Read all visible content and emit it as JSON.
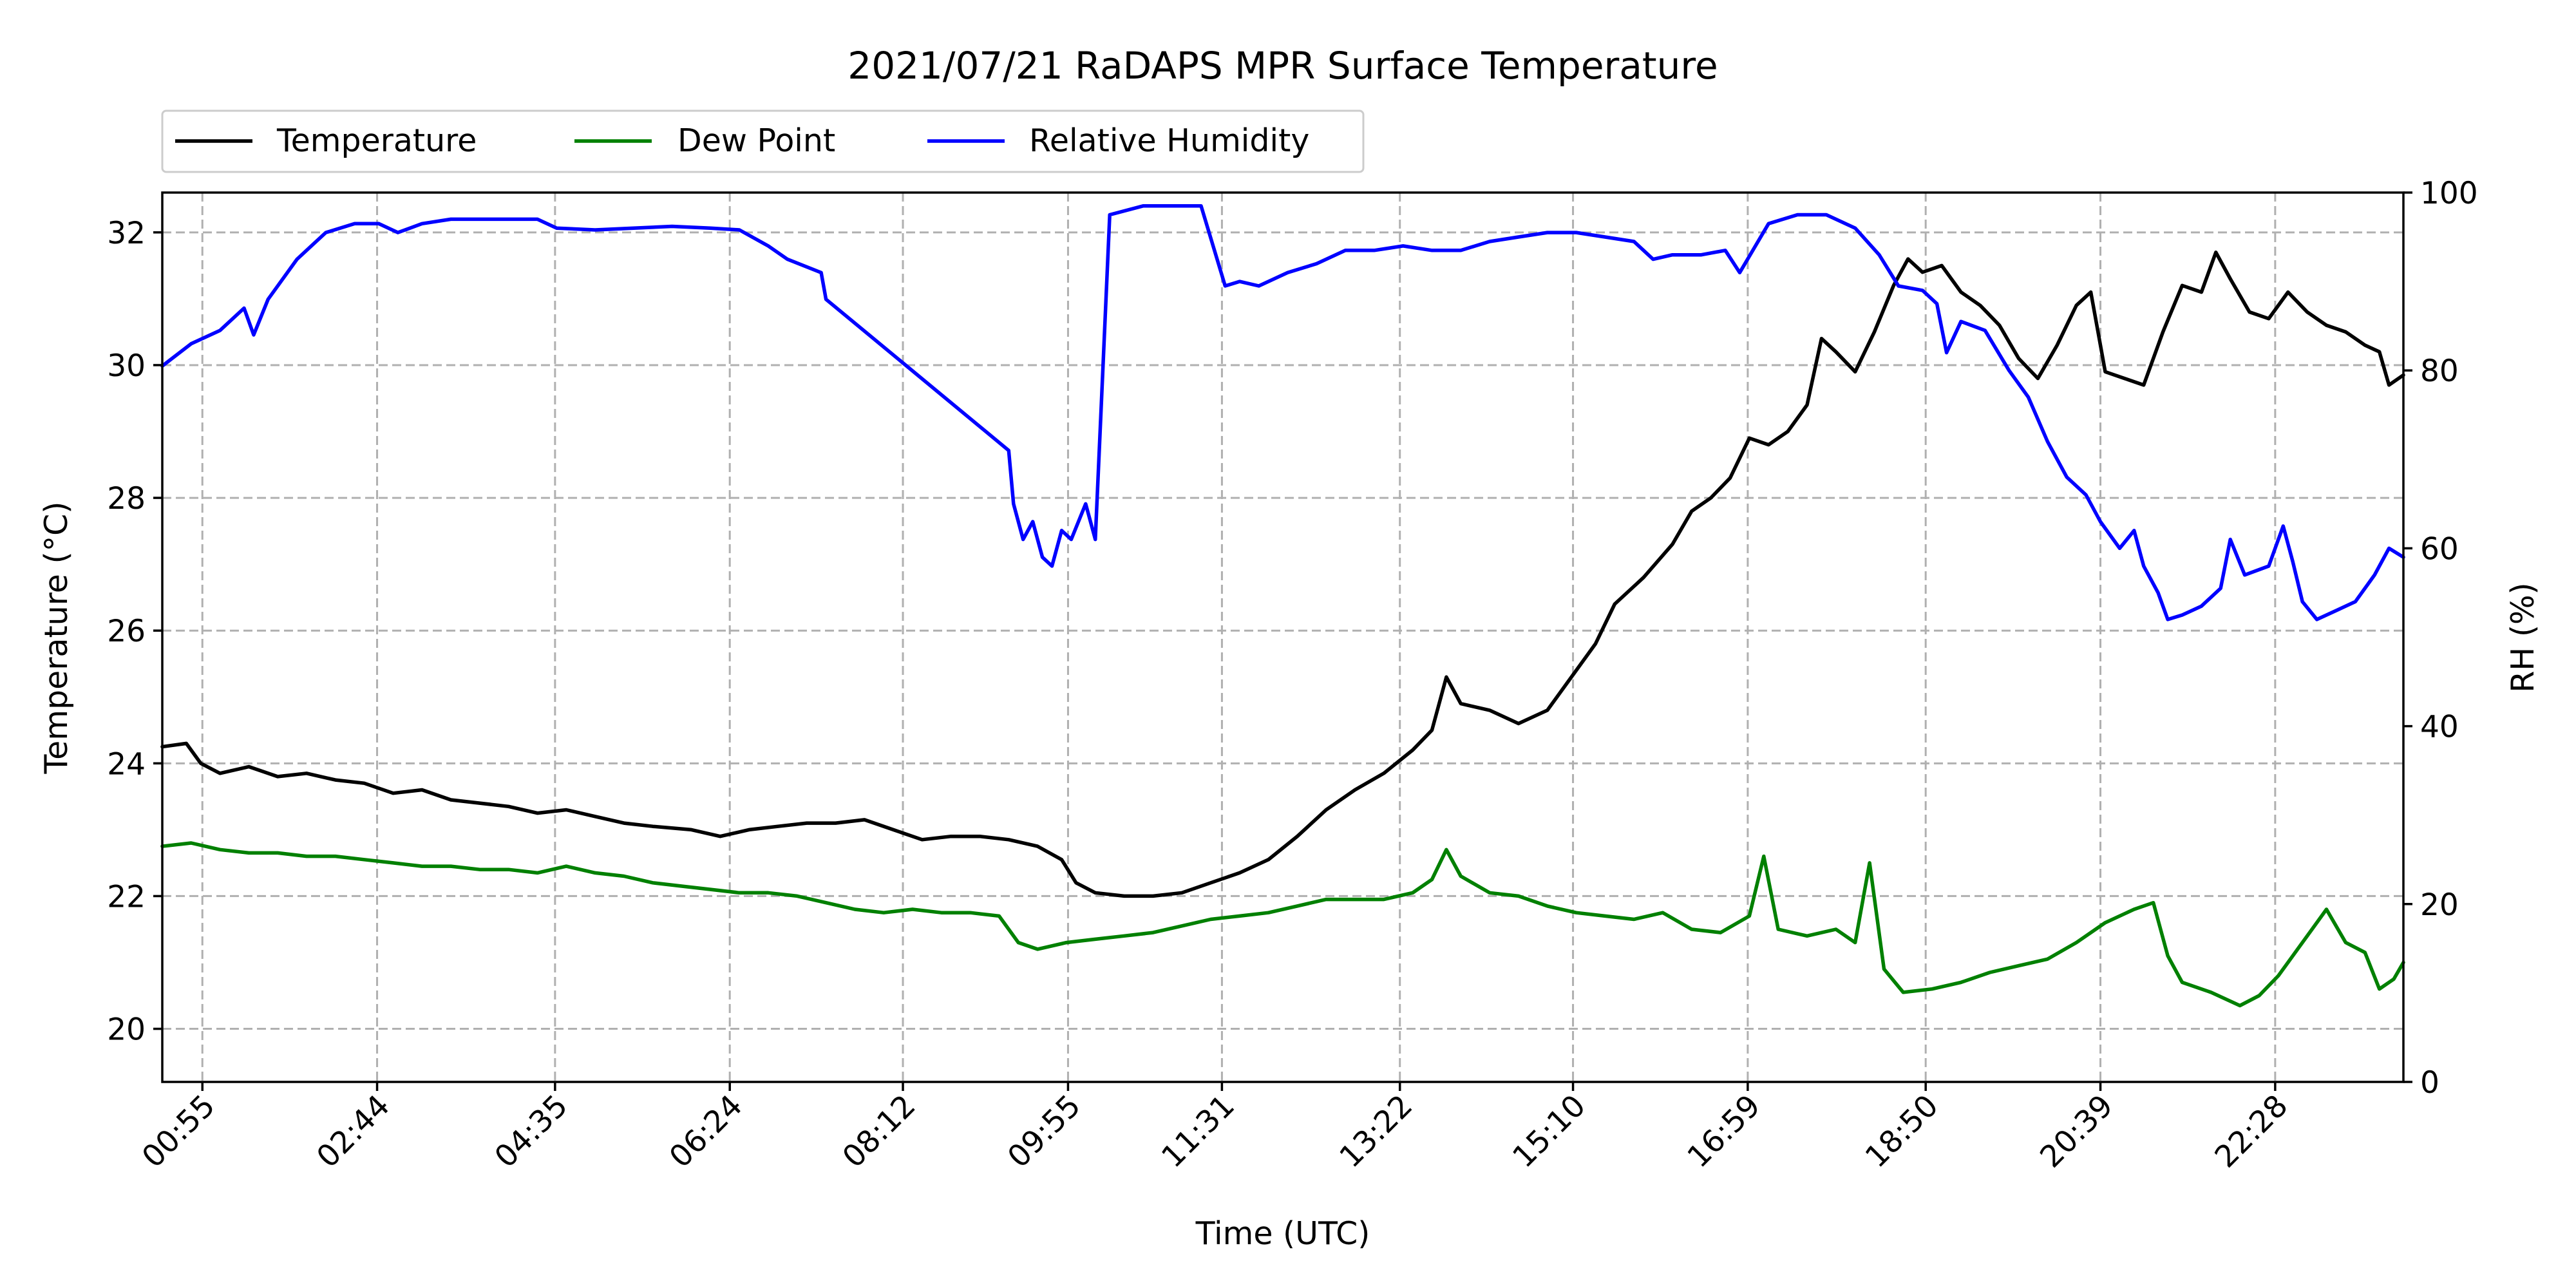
{
  "chart_data": {
    "type": "line",
    "title": "2021/07/21 RaDAPS MPR Surface Temperature",
    "xlabel": "Time (UTC)",
    "ylabel": "Temperature ($^\\circ$C)",
    "ylabel_display": "Temperature (°C)",
    "y2label": "RH (%)",
    "x_unit": "hours UTC",
    "xlim": [
      0.5,
      23.8
    ],
    "ylim": [
      19.2,
      32.6
    ],
    "y2lim": [
      0,
      100
    ],
    "x_ticks": [
      0.9167,
      2.7333,
      4.5833,
      6.4,
      8.2,
      9.9167,
      11.5167,
      13.3667,
      15.1667,
      16.9833,
      18.8333,
      20.65,
      22.4667
    ],
    "x_tick_labels": [
      "00:55",
      "02:44",
      "04:35",
      "06:24",
      "08:12",
      "09:55",
      "11:31",
      "13:22",
      "15:10",
      "16:59",
      "18:50",
      "20:39",
      "22:28"
    ],
    "y_ticks": [
      20,
      22,
      24,
      26,
      28,
      30,
      32
    ],
    "y_tick_labels": [
      "20",
      "22",
      "24",
      "26",
      "28",
      "30",
      "32"
    ],
    "y2_ticks": [
      0,
      20,
      40,
      60,
      80,
      100
    ],
    "y2_tick_labels": [
      "0",
      "20",
      "40",
      "60",
      "80",
      "100"
    ],
    "grid": true,
    "legend": {
      "placement": "above-left",
      "ncol": 3
    },
    "series": [
      {
        "name": "Temperature",
        "axis": "left",
        "color": "#000000",
        "points": [
          [
            0.5,
            24.25
          ],
          [
            0.75,
            24.3
          ],
          [
            0.9,
            24.0
          ],
          [
            1.1,
            23.85
          ],
          [
            1.4,
            23.95
          ],
          [
            1.7,
            23.8
          ],
          [
            2.0,
            23.85
          ],
          [
            2.3,
            23.75
          ],
          [
            2.6,
            23.7
          ],
          [
            2.9,
            23.55
          ],
          [
            3.2,
            23.6
          ],
          [
            3.5,
            23.45
          ],
          [
            3.8,
            23.4
          ],
          [
            4.1,
            23.35
          ],
          [
            4.4,
            23.25
          ],
          [
            4.7,
            23.3
          ],
          [
            5.0,
            23.2
          ],
          [
            5.3,
            23.1
          ],
          [
            5.6,
            23.05
          ],
          [
            6.0,
            23.0
          ],
          [
            6.3,
            22.9
          ],
          [
            6.6,
            23.0
          ],
          [
            6.9,
            23.05
          ],
          [
            7.2,
            23.1
          ],
          [
            7.5,
            23.1
          ],
          [
            7.8,
            23.15
          ],
          [
            8.1,
            23.0
          ],
          [
            8.4,
            22.85
          ],
          [
            8.7,
            22.9
          ],
          [
            9.0,
            22.9
          ],
          [
            9.3,
            22.85
          ],
          [
            9.6,
            22.75
          ],
          [
            9.85,
            22.55
          ],
          [
            10.0,
            22.2
          ],
          [
            10.2,
            22.05
          ],
          [
            10.5,
            22.0
          ],
          [
            10.8,
            22.0
          ],
          [
            11.1,
            22.05
          ],
          [
            11.4,
            22.2
          ],
          [
            11.7,
            22.35
          ],
          [
            12.0,
            22.55
          ],
          [
            12.3,
            22.9
          ],
          [
            12.6,
            23.3
          ],
          [
            12.9,
            23.6
          ],
          [
            13.2,
            23.85
          ],
          [
            13.5,
            24.2
          ],
          [
            13.7,
            24.5
          ],
          [
            13.85,
            25.3
          ],
          [
            14.0,
            24.9
          ],
          [
            14.3,
            24.8
          ],
          [
            14.6,
            24.6
          ],
          [
            14.9,
            24.8
          ],
          [
            15.1,
            25.2
          ],
          [
            15.4,
            25.8
          ],
          [
            15.6,
            26.4
          ],
          [
            15.9,
            26.8
          ],
          [
            16.2,
            27.3
          ],
          [
            16.4,
            27.8
          ],
          [
            16.6,
            28.0
          ],
          [
            16.8,
            28.3
          ],
          [
            17.0,
            28.9
          ],
          [
            17.2,
            28.8
          ],
          [
            17.4,
            29.0
          ],
          [
            17.6,
            29.4
          ],
          [
            17.75,
            30.4
          ],
          [
            17.9,
            30.2
          ],
          [
            18.1,
            29.9
          ],
          [
            18.3,
            30.5
          ],
          [
            18.5,
            31.2
          ],
          [
            18.65,
            31.6
          ],
          [
            18.8,
            31.4
          ],
          [
            19.0,
            31.5
          ],
          [
            19.2,
            31.1
          ],
          [
            19.4,
            30.9
          ],
          [
            19.6,
            30.6
          ],
          [
            19.8,
            30.1
          ],
          [
            20.0,
            29.8
          ],
          [
            20.2,
            30.3
          ],
          [
            20.4,
            30.9
          ],
          [
            20.55,
            31.1
          ],
          [
            20.7,
            29.9
          ],
          [
            20.9,
            29.8
          ],
          [
            21.1,
            29.7
          ],
          [
            21.3,
            30.5
          ],
          [
            21.5,
            31.2
          ],
          [
            21.7,
            31.1
          ],
          [
            21.85,
            31.7
          ],
          [
            22.0,
            31.3
          ],
          [
            22.2,
            30.8
          ],
          [
            22.4,
            30.7
          ],
          [
            22.6,
            31.1
          ],
          [
            22.8,
            30.8
          ],
          [
            23.0,
            30.6
          ],
          [
            23.2,
            30.5
          ],
          [
            23.4,
            30.3
          ],
          [
            23.55,
            30.2
          ],
          [
            23.65,
            29.7
          ],
          [
            23.8,
            29.85
          ]
        ]
      },
      {
        "name": "Dew Point",
        "axis": "left",
        "color": "#008000",
        "points": [
          [
            0.5,
            22.75
          ],
          [
            0.8,
            22.8
          ],
          [
            1.1,
            22.7
          ],
          [
            1.4,
            22.65
          ],
          [
            1.7,
            22.65
          ],
          [
            2.0,
            22.6
          ],
          [
            2.3,
            22.6
          ],
          [
            2.6,
            22.55
          ],
          [
            2.9,
            22.5
          ],
          [
            3.2,
            22.45
          ],
          [
            3.5,
            22.45
          ],
          [
            3.8,
            22.4
          ],
          [
            4.1,
            22.4
          ],
          [
            4.4,
            22.35
          ],
          [
            4.7,
            22.45
          ],
          [
            5.0,
            22.35
          ],
          [
            5.3,
            22.3
          ],
          [
            5.6,
            22.2
          ],
          [
            5.9,
            22.15
          ],
          [
            6.2,
            22.1
          ],
          [
            6.5,
            22.05
          ],
          [
            6.8,
            22.05
          ],
          [
            7.1,
            22.0
          ],
          [
            7.4,
            21.9
          ],
          [
            7.7,
            21.8
          ],
          [
            8.0,
            21.75
          ],
          [
            8.3,
            21.8
          ],
          [
            8.6,
            21.75
          ],
          [
            8.9,
            21.75
          ],
          [
            9.2,
            21.7
          ],
          [
            9.4,
            21.3
          ],
          [
            9.6,
            21.2
          ],
          [
            9.9,
            21.3
          ],
          [
            10.2,
            21.35
          ],
          [
            10.5,
            21.4
          ],
          [
            10.8,
            21.45
          ],
          [
            11.1,
            21.55
          ],
          [
            11.4,
            21.65
          ],
          [
            11.7,
            21.7
          ],
          [
            12.0,
            21.75
          ],
          [
            12.3,
            21.85
          ],
          [
            12.6,
            21.95
          ],
          [
            12.9,
            21.95
          ],
          [
            13.2,
            21.95
          ],
          [
            13.5,
            22.05
          ],
          [
            13.7,
            22.25
          ],
          [
            13.85,
            22.7
          ],
          [
            14.0,
            22.3
          ],
          [
            14.3,
            22.05
          ],
          [
            14.6,
            22.0
          ],
          [
            14.9,
            21.85
          ],
          [
            15.2,
            21.75
          ],
          [
            15.5,
            21.7
          ],
          [
            15.8,
            21.65
          ],
          [
            16.1,
            21.75
          ],
          [
            16.4,
            21.5
          ],
          [
            16.7,
            21.45
          ],
          [
            17.0,
            21.7
          ],
          [
            17.15,
            22.6
          ],
          [
            17.3,
            21.5
          ],
          [
            17.6,
            21.4
          ],
          [
            17.9,
            21.5
          ],
          [
            18.1,
            21.3
          ],
          [
            18.25,
            22.5
          ],
          [
            18.4,
            20.9
          ],
          [
            18.6,
            20.55
          ],
          [
            18.9,
            20.6
          ],
          [
            19.2,
            20.7
          ],
          [
            19.5,
            20.85
          ],
          [
            19.8,
            20.95
          ],
          [
            20.1,
            21.05
          ],
          [
            20.4,
            21.3
          ],
          [
            20.7,
            21.6
          ],
          [
            21.0,
            21.8
          ],
          [
            21.2,
            21.9
          ],
          [
            21.35,
            21.1
          ],
          [
            21.5,
            20.7
          ],
          [
            21.8,
            20.55
          ],
          [
            22.1,
            20.35
          ],
          [
            22.3,
            20.5
          ],
          [
            22.5,
            20.8
          ],
          [
            22.7,
            21.2
          ],
          [
            22.85,
            21.5
          ],
          [
            23.0,
            21.8
          ],
          [
            23.2,
            21.3
          ],
          [
            23.4,
            21.15
          ],
          [
            23.55,
            20.6
          ],
          [
            23.7,
            20.75
          ],
          [
            23.8,
            21.0
          ]
        ]
      },
      {
        "name": "Relative Humidity",
        "axis": "right",
        "color": "#0000ff",
        "points": [
          [
            0.5,
            80.5
          ],
          [
            0.8,
            83.0
          ],
          [
            1.1,
            84.5
          ],
          [
            1.35,
            87.0
          ],
          [
            1.45,
            84.0
          ],
          [
            1.6,
            88.0
          ],
          [
            1.9,
            92.5
          ],
          [
            2.2,
            95.5
          ],
          [
            2.5,
            96.5
          ],
          [
            2.75,
            96.5
          ],
          [
            2.95,
            95.5
          ],
          [
            3.2,
            96.5
          ],
          [
            3.5,
            97.0
          ],
          [
            3.8,
            97.0
          ],
          [
            4.1,
            97.0
          ],
          [
            4.4,
            97.0
          ],
          [
            4.6,
            96.0
          ],
          [
            5.0,
            95.8
          ],
          [
            5.4,
            96.0
          ],
          [
            5.8,
            96.2
          ],
          [
            6.2,
            96.0
          ],
          [
            6.5,
            95.8
          ],
          [
            6.8,
            94.0
          ],
          [
            7.0,
            92.5
          ],
          [
            7.35,
            91.0
          ],
          [
            7.4,
            88.0
          ],
          [
            9.3,
            71.0
          ],
          [
            9.35,
            65.0
          ],
          [
            9.45,
            61.0
          ],
          [
            9.55,
            63.0
          ],
          [
            9.65,
            59.0
          ],
          [
            9.75,
            58.0
          ],
          [
            9.85,
            62.0
          ],
          [
            9.95,
            61.0
          ],
          [
            10.1,
            65.0
          ],
          [
            10.2,
            61.0
          ],
          [
            10.35,
            97.5
          ],
          [
            10.7,
            98.5
          ],
          [
            11.0,
            98.5
          ],
          [
            11.3,
            98.5
          ],
          [
            11.55,
            89.5
          ],
          [
            11.7,
            90.0
          ],
          [
            11.9,
            89.5
          ],
          [
            12.2,
            91.0
          ],
          [
            12.5,
            92.0
          ],
          [
            12.8,
            93.5
          ],
          [
            13.1,
            93.5
          ],
          [
            13.4,
            94.0
          ],
          [
            13.7,
            93.5
          ],
          [
            14.0,
            93.5
          ],
          [
            14.3,
            94.5
          ],
          [
            14.6,
            95.0
          ],
          [
            14.9,
            95.5
          ],
          [
            15.2,
            95.5
          ],
          [
            15.5,
            95.0
          ],
          [
            15.8,
            94.5
          ],
          [
            16.0,
            92.5
          ],
          [
            16.2,
            93.0
          ],
          [
            16.5,
            93.0
          ],
          [
            16.75,
            93.5
          ],
          [
            16.9,
            91.0
          ],
          [
            17.2,
            96.5
          ],
          [
            17.5,
            97.5
          ],
          [
            17.8,
            97.5
          ],
          [
            18.1,
            96.0
          ],
          [
            18.35,
            93.0
          ],
          [
            18.55,
            89.5
          ],
          [
            18.8,
            89.0
          ],
          [
            18.95,
            87.5
          ],
          [
            19.05,
            82.0
          ],
          [
            19.2,
            85.5
          ],
          [
            19.45,
            84.5
          ],
          [
            19.7,
            80.0
          ],
          [
            19.9,
            77.0
          ],
          [
            20.1,
            72.0
          ],
          [
            20.3,
            68.0
          ],
          [
            20.5,
            66.0
          ],
          [
            20.65,
            63.0
          ],
          [
            20.85,
            60.0
          ],
          [
            21.0,
            62.0
          ],
          [
            21.1,
            58.0
          ],
          [
            21.25,
            55.0
          ],
          [
            21.35,
            52.0
          ],
          [
            21.5,
            52.5
          ],
          [
            21.7,
            53.5
          ],
          [
            21.9,
            55.5
          ],
          [
            22.0,
            61.0
          ],
          [
            22.15,
            57.0
          ],
          [
            22.4,
            58.0
          ],
          [
            22.55,
            62.5
          ],
          [
            22.65,
            58.5
          ],
          [
            22.75,
            54.0
          ],
          [
            22.9,
            52.0
          ],
          [
            23.1,
            53.0
          ],
          [
            23.3,
            54.0
          ],
          [
            23.5,
            57.0
          ],
          [
            23.65,
            60.0
          ],
          [
            23.8,
            59.0
          ]
        ]
      }
    ]
  }
}
